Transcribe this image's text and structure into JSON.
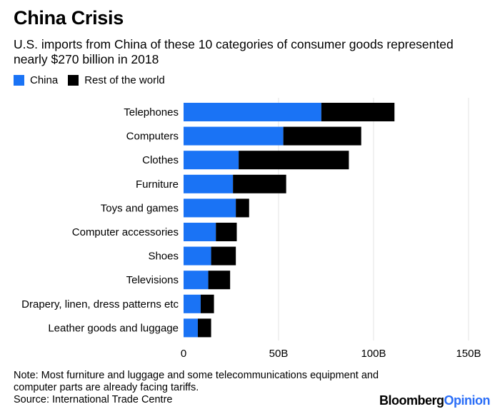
{
  "chart_data": {
    "type": "bar",
    "stacked": true,
    "orientation": "horizontal",
    "title": "China Crisis",
    "subtitle": "U.S. imports from China of these 10 categories of consumer goods represented nearly $270 billion in 2018",
    "categories": [
      "Telephones",
      "Computers",
      "Clothes",
      "Furniture",
      "Toys and games",
      "Computer accessories",
      "Shoes",
      "Televisions",
      "Drapery, linen, dress patterns etc",
      "Leather goods and luggage"
    ],
    "series": [
      {
        "name": "China",
        "color": "#1a73f5",
        "values": [
          72.5,
          52.5,
          29,
          26,
          27.5,
          17,
          14.5,
          13,
          9,
          7.5
        ]
      },
      {
        "name": "Rest of the world",
        "color": "#000000",
        "values": [
          38.5,
          41,
          58,
          28,
          7,
          11,
          13,
          11.5,
          7,
          7
        ]
      }
    ],
    "xlim": [
      0,
      150
    ],
    "xticks": [
      0,
      50,
      100,
      150
    ],
    "xtick_labels": [
      "0",
      "50B",
      "100B",
      "150B"
    ],
    "legend_position": "top-left",
    "grid": true
  },
  "note": "Note: Most furniture and luggage and some telecommunications equipment and computer parts are already facing tariffs.",
  "source": "Source: International Trade Centre",
  "brand": {
    "primary": "Bloomberg",
    "secondary": "Opinion"
  }
}
